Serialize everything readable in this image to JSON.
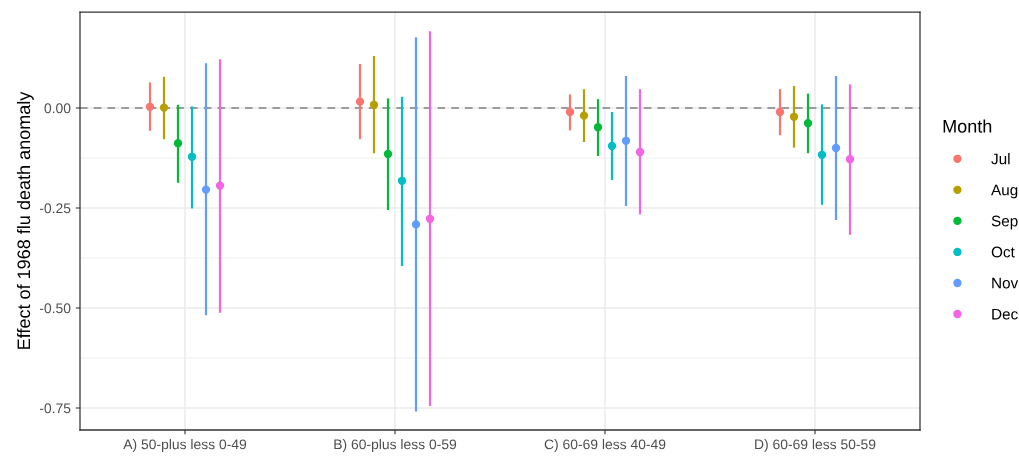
{
  "chart_data": {
    "type": "scatter",
    "ylabel": "Effect of 1968 flu death anomaly",
    "legend_title": "Month",
    "legend": "right",
    "grid": true,
    "marker": "circle",
    "categories": [
      "A) 50-plus less 0-49",
      "B) 60-plus less 0-59",
      "C) 60-69 less 40-49",
      "D) 60-69 less 50-59"
    ],
    "ylim": [
      -0.805,
      0.24
    ],
    "yticks": [
      {
        "value": 0,
        "label": "0.00"
      },
      {
        "value": -0.25,
        "label": "-0.25"
      },
      {
        "value": -0.5,
        "label": "-0.50"
      },
      {
        "value": -0.75,
        "label": "-0.75"
      }
    ],
    "ref_lines": [
      {
        "axis": "y",
        "value": 0,
        "color": "#808080",
        "line_style": "dashed"
      }
    ],
    "series": [
      {
        "name": "Jul",
        "color": "#F8766D",
        "values": [
          0.003,
          0.016,
          -0.01,
          -0.01
        ],
        "errors": [
          [
            -0.057,
            0.064
          ],
          [
            -0.078,
            0.11
          ],
          [
            -0.056,
            0.034
          ],
          [
            -0.068,
            0.047
          ]
        ]
      },
      {
        "name": "Aug",
        "color": "#B79F00",
        "values": [
          0.001,
          0.008,
          -0.019,
          -0.022
        ],
        "errors": [
          [
            -0.078,
            0.078
          ],
          [
            -0.113,
            0.13
          ],
          [
            -0.085,
            0.047
          ],
          [
            -0.099,
            0.055
          ]
        ]
      },
      {
        "name": "Sep",
        "color": "#00BA38",
        "values": [
          -0.088,
          -0.115,
          -0.048,
          -0.038
        ],
        "errors": [
          [
            -0.187,
            0.008
          ],
          [
            -0.255,
            0.024
          ],
          [
            -0.12,
            0.022
          ],
          [
            -0.113,
            0.036
          ]
        ]
      },
      {
        "name": "Oct",
        "color": "#00BFC4",
        "values": [
          -0.122,
          -0.182,
          -0.095,
          -0.117
        ],
        "errors": [
          [
            -0.251,
            0.004
          ],
          [
            -0.395,
            0.028
          ],
          [
            -0.18,
            -0.01
          ],
          [
            -0.242,
            0.009
          ]
        ]
      },
      {
        "name": "Nov",
        "color": "#619CFF",
        "values": [
          -0.204,
          -0.291,
          -0.082,
          -0.1
        ],
        "errors": [
          [
            -0.518,
            0.112
          ],
          [
            -0.759,
            0.177
          ],
          [
            -0.245,
            0.08
          ],
          [
            -0.28,
            0.08
          ]
        ]
      },
      {
        "name": "Dec",
        "color": "#F564E3",
        "values": [
          -0.194,
          -0.277,
          -0.11,
          -0.128
        ],
        "errors": [
          [
            -0.512,
            0.122
          ],
          [
            -0.745,
            0.192
          ],
          [
            -0.266,
            0.047
          ],
          [
            -0.317,
            0.059
          ]
        ]
      }
    ]
  }
}
